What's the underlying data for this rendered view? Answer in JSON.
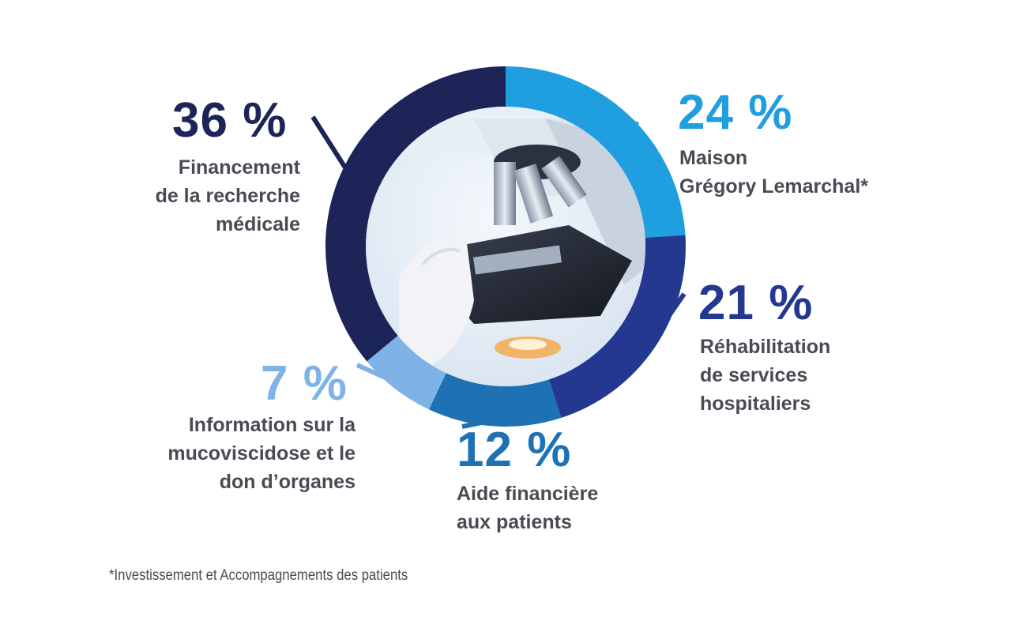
{
  "chart_data": {
    "type": "pie",
    "style": "donut",
    "slices": [
      {
        "value": 24,
        "label_pct": "24 %",
        "label": "Maison\nGrégory Lemarchal*",
        "color": "#1f9ee0"
      },
      {
        "value": 21,
        "label_pct": "21 %",
        "label": "Réhabilitation\nde services\nhospitaliers",
        "color": "#24388f"
      },
      {
        "value": 12,
        "label_pct": "12 %",
        "label": "Aide financière\naux patients",
        "color": "#1e72b4"
      },
      {
        "value": 7,
        "label_pct": "7 %",
        "label": "Information sur la\nmucoviscidose et le\ndon d’organes",
        "color": "#7fb3e8"
      },
      {
        "value": 36,
        "label_pct": "36 %",
        "label": "Financement\nde la recherche\nmédicale",
        "color": "#1c2458"
      }
    ],
    "footnote": "*Investissement et Accompagnements des patients"
  }
}
